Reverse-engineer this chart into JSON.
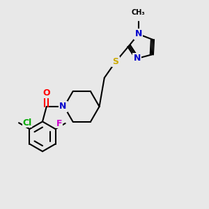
{
  "bg_color": "#e8e8e8",
  "bond_color": "#000000",
  "N_color": "#0000cc",
  "O_color": "#ff0000",
  "S_color": "#ccaa00",
  "F_color": "#cc00cc",
  "Cl_color": "#00aa00",
  "line_width": 1.5,
  "font_size": 9,
  "figsize": [
    3.0,
    3.0
  ],
  "dpi": 100,
  "xlim": [
    0,
    10
  ],
  "ylim": [
    0,
    10
  ]
}
